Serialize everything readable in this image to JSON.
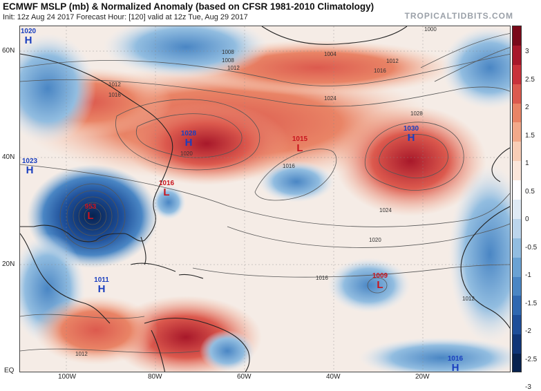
{
  "header": {
    "title": "ECMWF MSLP (mb) & Normalized Anomaly (based on CFSR 1981-2010 Climatology)",
    "subtitle": "Init: 12z Aug 24 2017   Forecast Hour: [120]   valid at 12z Tue, Aug 29 2017",
    "watermark": "TROPICALTIDBITS.COM"
  },
  "lat_labels": [
    "60N",
    "40N",
    "20N",
    "EQ"
  ],
  "lon_labels": [
    "100W",
    "80W",
    "60W",
    "40W",
    "20W"
  ],
  "colorbar": {
    "labels": [
      "3",
      "2.5",
      "2",
      "1.5",
      "1",
      "0.5",
      "0",
      "-0.5",
      "-1",
      "-1.5",
      "-2",
      "-2.5",
      "-3"
    ],
    "colors": [
      "#7a0a1a",
      "#a8182a",
      "#c9323a",
      "#dc5a4e",
      "#e98466",
      "#f2a98a",
      "#f8cdb6",
      "#fbe6da",
      "#ffffff",
      "#dfeaf5",
      "#bcd5ec",
      "#92bde0",
      "#6aa2d3",
      "#4a86c4",
      "#2f68b1",
      "#1d4e99",
      "#0f3577",
      "#07224f"
    ]
  },
  "pressure_centers": [
    {
      "type": "H",
      "value": "1020"
    },
    {
      "type": "H",
      "value": "1023"
    },
    {
      "type": "H",
      "value": "1028"
    },
    {
      "type": "L",
      "value": "1015"
    },
    {
      "type": "H",
      "value": "1030"
    },
    {
      "type": "L",
      "value": "1016"
    },
    {
      "type": "L",
      "value": "953"
    },
    {
      "type": "H",
      "value": "1011"
    },
    {
      "type": "L",
      "value": "1009"
    },
    {
      "type": "H",
      "value": "1016"
    }
  ],
  "isobar_labels": [
    "1000",
    "1004",
    "1008",
    "1012",
    "1016",
    "1020",
    "1024",
    "1028",
    "1012",
    "1016",
    "1020",
    "1024",
    "1008",
    "1012",
    "1016",
    "1012",
    "1016",
    "1012"
  ],
  "colors": {
    "high": "#1a3fbf",
    "low": "#c8141e",
    "land_outline": "#222222"
  }
}
